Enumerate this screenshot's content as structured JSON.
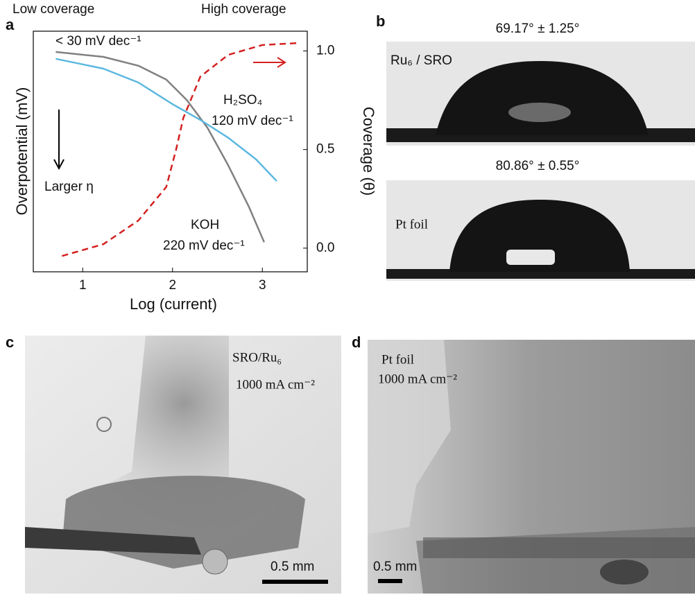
{
  "chart_data": {
    "type": "line",
    "xlabel": "Log (current)",
    "ylabel": "Overpotential (mV)",
    "y2label": "Coverage (θ)",
    "xlim": [
      0.45,
      3.5
    ],
    "xticks": [
      1,
      2,
      3
    ],
    "ylim": [
      -0.12,
      1.1
    ],
    "y2lim": [
      -0.12,
      1.1
    ],
    "y2ticks": [
      {
        "value": 0,
        "label": "0.0"
      },
      0.5,
      {
        "value": 1,
        "label": "1.0"
      }
    ],
    "series": [
      {
        "name": "KOH",
        "label": "220 mV dec⁻¹",
        "color": "#808080",
        "x": [
          0.7,
          1.23,
          1.62,
          1.93,
          2.16,
          2.39,
          2.62,
          2.85,
          3.02
        ],
        "values": [
          0.995,
          0.97,
          0.925,
          0.855,
          0.75,
          0.61,
          0.42,
          0.21,
          0.03
        ]
      },
      {
        "name": "H₂SO₄",
        "label": "120 mV dec⁻¹",
        "color": "#5bb8e0",
        "x": [
          0.7,
          1.23,
          1.62,
          2.0,
          2.31,
          2.62,
          2.93,
          3.16
        ],
        "values": [
          0.96,
          0.91,
          0.84,
          0.73,
          0.65,
          0.56,
          0.45,
          0.34
        ]
      },
      {
        "label": "< 30 mV dec⁻¹",
        "color": "#d42020",
        "axis": "y2",
        "dashed": true,
        "x": [
          0.77,
          1.23,
          1.62,
          1.93,
          2.04,
          2.12,
          2.31,
          2.62,
          3.0,
          3.39
        ],
        "values": [
          -0.04,
          0.02,
          0.14,
          0.31,
          0.5,
          0.66,
          0.87,
          0.98,
          1.03,
          1.04
        ]
      }
    ],
    "annotations": [
      "Low coverage",
      "High coverage",
      "Larger η"
    ]
  },
  "panels": {
    "a": "a",
    "b": {
      "label": "b",
      "top_angle": "69.17° ± 1.25°",
      "top_sample": "Ru₆ / SRO",
      "bottom_angle": "80.86° ± 0.55°",
      "bottom_sample": "Pt foil"
    },
    "c": {
      "label": "c",
      "sample": "SRO/Ru₆",
      "current": "1000 mA cm⁻²",
      "scale": "0.5 mm"
    },
    "d": {
      "label": "d",
      "sample": "Pt foil",
      "current": "1000 mA cm⁻²",
      "scale": "0.5 mm"
    }
  }
}
